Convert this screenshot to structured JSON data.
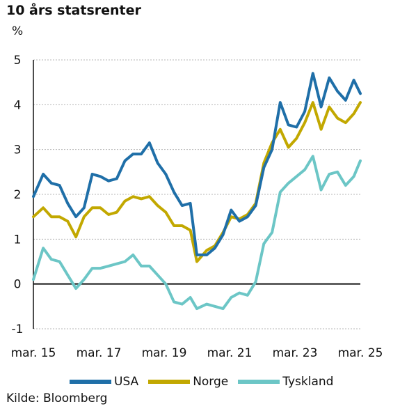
{
  "chart_data": {
    "type": "line",
    "title": "10 års statsrenter",
    "ylabel": "%",
    "xlabel": "",
    "ylim": [
      -1,
      5
    ],
    "yticks": [
      "5",
      "4",
      "3",
      "2",
      "1",
      "0",
      "-1"
    ],
    "xticks": [
      "mar. 15",
      "mar. 17",
      "mar. 19",
      "mar. 21",
      "mar. 23",
      "mar. 25"
    ],
    "x": [
      2015.2,
      2015.5,
      2015.75,
      2016.0,
      2016.25,
      2016.5,
      2016.75,
      2017.0,
      2017.25,
      2017.5,
      2017.75,
      2018.0,
      2018.25,
      2018.5,
      2018.75,
      2019.0,
      2019.25,
      2019.5,
      2019.75,
      2020.0,
      2020.2,
      2020.5,
      2020.75,
      2021.0,
      2021.25,
      2021.5,
      2021.75,
      2022.0,
      2022.25,
      2022.5,
      2022.75,
      2023.0,
      2023.25,
      2023.5,
      2023.75,
      2024.0,
      2024.25,
      2024.5,
      2024.75,
      2025.0,
      2025.2
    ],
    "series": [
      {
        "name": "USA",
        "color": "#1f6fa8",
        "values": [
          1.95,
          2.45,
          2.25,
          2.2,
          1.8,
          1.5,
          1.7,
          2.45,
          2.4,
          2.3,
          2.35,
          2.75,
          2.9,
          2.9,
          3.15,
          2.7,
          2.45,
          2.05,
          1.75,
          1.8,
          0.65,
          0.65,
          0.8,
          1.1,
          1.65,
          1.4,
          1.5,
          1.75,
          2.6,
          3.0,
          4.05,
          3.55,
          3.5,
          3.85,
          4.7,
          3.95,
          4.6,
          4.3,
          4.1,
          4.55,
          4.25
        ]
      },
      {
        "name": "Norge",
        "color": "#c2a800",
        "values": [
          1.5,
          1.7,
          1.5,
          1.5,
          1.4,
          1.05,
          1.5,
          1.7,
          1.7,
          1.55,
          1.6,
          1.85,
          1.95,
          1.9,
          1.95,
          1.75,
          1.6,
          1.3,
          1.3,
          1.2,
          0.5,
          0.75,
          0.85,
          1.15,
          1.5,
          1.45,
          1.55,
          1.8,
          2.7,
          3.15,
          3.45,
          3.05,
          3.25,
          3.6,
          4.05,
          3.45,
          3.95,
          3.7,
          3.6,
          3.8,
          4.05
        ]
      },
      {
        "name": "Tyskland",
        "color": "#6cc6c6",
        "values": [
          0.1,
          0.8,
          0.55,
          0.5,
          0.2,
          -0.1,
          0.1,
          0.35,
          0.35,
          0.4,
          0.45,
          0.5,
          0.65,
          0.4,
          0.4,
          0.2,
          0.0,
          -0.4,
          -0.45,
          -0.3,
          -0.55,
          -0.45,
          -0.5,
          -0.55,
          -0.3,
          -0.2,
          -0.25,
          0.05,
          0.9,
          1.15,
          2.05,
          2.25,
          2.4,
          2.55,
          2.85,
          2.1,
          2.45,
          2.5,
          2.2,
          2.4,
          2.75
        ]
      }
    ]
  },
  "legend": [
    "USA",
    "Norge",
    "Tyskland"
  ],
  "source": "Kilde: Bloomberg"
}
